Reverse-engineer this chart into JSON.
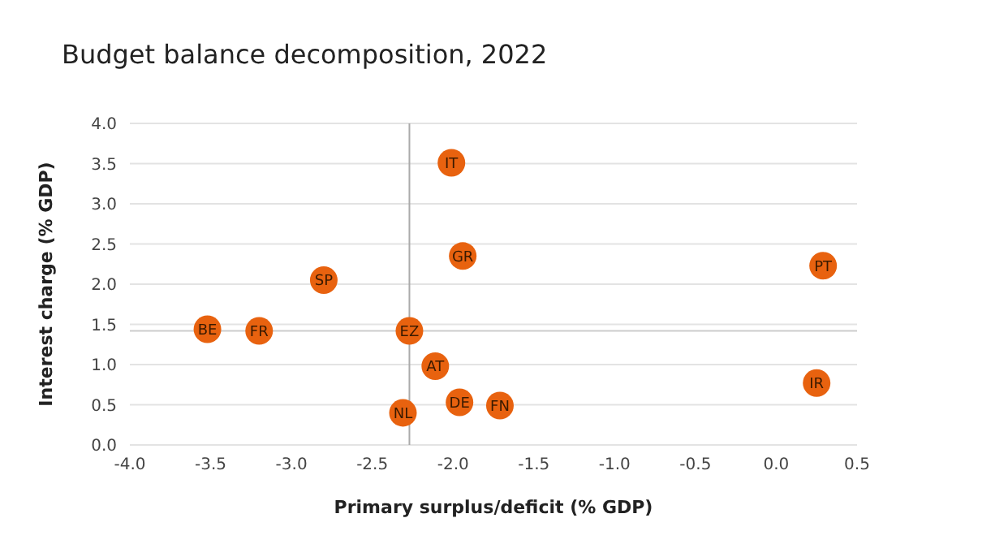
{
  "chart_data": {
    "type": "scatter",
    "title": "Budget balance decomposition, 2022",
    "xlabel": "Primary surplus/deficit (% GDP)",
    "ylabel": "Interest charge (% GDP)",
    "x": [
      -3.52,
      -3.2,
      -2.8,
      -2.27,
      -2.01,
      -1.94,
      -2.11,
      -1.96,
      -1.71,
      -2.31,
      0.29,
      0.25
    ],
    "series": [
      {
        "color": "#e8620f",
        "values": [
          1.44,
          1.42,
          2.05,
          1.42,
          3.51,
          2.35,
          0.98,
          0.53,
          0.49,
          0.4,
          2.23,
          0.77
        ]
      }
    ],
    "annotations": [
      {
        "text": "BE",
        "x": -3.52,
        "y": 1.44
      },
      {
        "text": "FR",
        "x": -3.2,
        "y": 1.42
      },
      {
        "text": "SP",
        "x": -2.8,
        "y": 2.05
      },
      {
        "text": "EZ",
        "x": -2.27,
        "y": 1.42
      },
      {
        "text": "IT",
        "x": -2.01,
        "y": 3.51
      },
      {
        "text": "GR",
        "x": -1.94,
        "y": 2.35
      },
      {
        "text": "AT",
        "x": -2.11,
        "y": 0.98
      },
      {
        "text": "DE",
        "x": -1.96,
        "y": 0.53
      },
      {
        "text": "FN",
        "x": -1.71,
        "y": 0.49
      },
      {
        "text": "NL",
        "x": -2.31,
        "y": 0.4
      },
      {
        "text": "PT",
        "x": 0.29,
        "y": 2.23
      },
      {
        "text": "IR",
        "x": 0.25,
        "y": 0.77
      }
    ],
    "ref_lines": [
      {
        "axis": "x",
        "value": -2.27,
        "color": "#aaaaaa"
      },
      {
        "axis": "y",
        "value": 1.42,
        "color": "#cccccc"
      }
    ],
    "xlim": [
      -4,
      0.5
    ],
    "xticks": [
      {
        "value": -4,
        "label": "-4.0"
      },
      -3.5,
      {
        "value": -3,
        "label": "-3.0"
      },
      -2.5,
      {
        "value": -2,
        "label": "-2.0"
      },
      -1.5,
      {
        "value": -1,
        "label": "-1.0"
      },
      -0.5,
      {
        "value": 0,
        "label": "0.0"
      },
      0.5
    ],
    "ylim": [
      0,
      4
    ],
    "yticks": [
      {
        "value": 0,
        "label": "0.0"
      },
      0.5,
      {
        "value": 1,
        "label": "1.0"
      },
      1.5,
      {
        "value": 2,
        "label": "2.0"
      },
      2.5,
      {
        "value": 3,
        "label": "3.0"
      },
      3.5,
      {
        "value": 4,
        "label": "4.0"
      }
    ],
    "grid": "y",
    "marker": "circle",
    "legend": false
  }
}
